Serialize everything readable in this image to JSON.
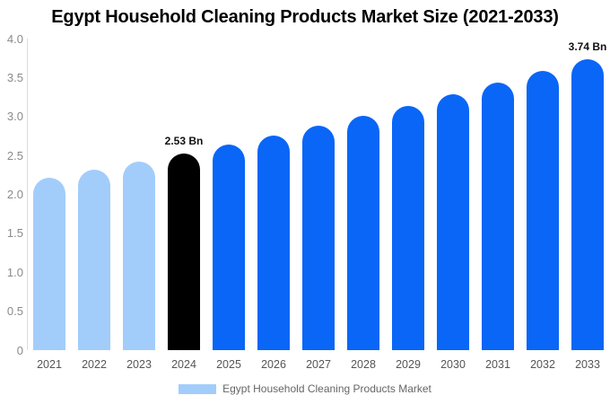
{
  "chart_data": {
    "type": "bar",
    "title": "Egypt Household Cleaning Products Market Size (2021-2033)",
    "xlabel": "",
    "ylabel": "",
    "unit": "Bn",
    "categories": [
      "2021",
      "2022",
      "2023",
      "2024",
      "2025",
      "2026",
      "2027",
      "2028",
      "2029",
      "2030",
      "2031",
      "2032",
      "2033"
    ],
    "values": [
      2.21,
      2.32,
      2.42,
      2.53,
      2.64,
      2.76,
      2.88,
      3.01,
      3.14,
      3.28,
      3.43,
      3.58,
      3.74
    ],
    "bar_roles": [
      "historical",
      "historical",
      "historical",
      "highlight",
      "forecast",
      "forecast",
      "forecast",
      "forecast",
      "forecast",
      "forecast",
      "forecast",
      "forecast",
      "forecast"
    ],
    "annotations": [
      {
        "category": "2024",
        "text": "2.53 Bn"
      },
      {
        "category": "2033",
        "text": "3.74 Bn"
      }
    ],
    "ylim": [
      0,
      4.0
    ],
    "yticks": [
      {
        "value": 0,
        "label": "0"
      },
      {
        "value": 0.5,
        "label": "0.5"
      },
      {
        "value": 1.0,
        "label": "1.0"
      },
      {
        "value": 1.5,
        "label": "1.5"
      },
      {
        "value": 2.0,
        "label": "2.0"
      },
      {
        "value": 2.5,
        "label": "2.5"
      },
      {
        "value": 3.0,
        "label": "3.0"
      },
      {
        "value": 3.5,
        "label": "3.5"
      },
      {
        "value": 4.0,
        "label": "4.0"
      }
    ],
    "grid": false,
    "legend": {
      "position": "bottom",
      "items": [
        {
          "label": "Egypt Household Cleaning Products Market",
          "swatch_color": "#A2CDFB"
        }
      ]
    },
    "colors": {
      "historical": "#A2CDFB",
      "highlight": "#000000",
      "forecast": "#0A66F6",
      "axis_line": "#DDDDDD",
      "ytick_text": "#8A8A8A",
      "xtick_text": "#555555",
      "annotation_text": "#111111",
      "legend_text": "#666666",
      "title_text": "#000000",
      "background": "#FFFFFF"
    }
  }
}
